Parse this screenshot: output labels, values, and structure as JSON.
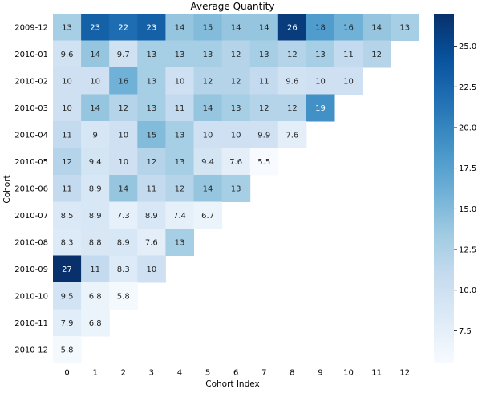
{
  "chart_data": {
    "type": "heatmap",
    "title": "Average Quantity",
    "xlabel": "Cohort Index",
    "ylabel": "Cohort",
    "rows": [
      "2009-12",
      "2010-01",
      "2010-02",
      "2010-03",
      "2010-04",
      "2010-05",
      "2010-06",
      "2010-07",
      "2010-08",
      "2010-09",
      "2010-10",
      "2010-11",
      "2010-12"
    ],
    "columns": [
      "0",
      "1",
      "2",
      "3",
      "4",
      "5",
      "6",
      "7",
      "8",
      "9",
      "10",
      "11",
      "12"
    ],
    "values": [
      [
        13,
        23,
        22,
        23,
        14,
        15,
        14,
        14,
        26,
        18,
        16,
        14,
        13
      ],
      [
        9.6,
        14,
        9.7,
        13,
        13,
        13,
        12,
        13,
        12,
        13,
        11,
        12,
        null
      ],
      [
        10,
        10,
        16,
        13,
        10,
        12,
        12,
        11,
        9.6,
        10,
        10,
        null,
        null
      ],
      [
        10,
        14,
        12,
        13,
        11,
        14,
        13,
        12,
        12,
        19,
        null,
        null,
        null
      ],
      [
        11,
        9,
        10,
        15,
        13,
        10,
        10,
        9.9,
        7.6,
        null,
        null,
        null,
        null
      ],
      [
        12,
        9.4,
        10,
        12,
        13,
        9.4,
        7.6,
        5.5,
        null,
        null,
        null,
        null,
        null
      ],
      [
        11,
        8.9,
        14,
        11,
        12,
        14,
        13,
        null,
        null,
        null,
        null,
        null,
        null
      ],
      [
        8.5,
        8.9,
        7.3,
        8.9,
        7.4,
        6.7,
        null,
        null,
        null,
        null,
        null,
        null,
        null
      ],
      [
        8.3,
        8.8,
        8.9,
        7.6,
        13,
        null,
        null,
        null,
        null,
        null,
        null,
        null,
        null
      ],
      [
        27,
        11,
        8.3,
        10,
        null,
        null,
        null,
        null,
        null,
        null,
        null,
        null,
        null
      ],
      [
        9.5,
        6.8,
        5.8,
        null,
        null,
        null,
        null,
        null,
        null,
        null,
        null,
        null,
        null
      ],
      [
        7.9,
        6.8,
        null,
        null,
        null,
        null,
        null,
        null,
        null,
        null,
        null,
        null,
        null
      ],
      [
        5.8,
        null,
        null,
        null,
        null,
        null,
        null,
        null,
        null,
        null,
        null,
        null,
        null
      ]
    ],
    "colorbar": {
      "colormap": "Blues",
      "vmin": 5.5,
      "vmax": 27,
      "ticks": [
        "7.5",
        "10.0",
        "12.5",
        "15.0",
        "17.5",
        "20.0",
        "22.5",
        "25.0"
      ]
    }
  }
}
